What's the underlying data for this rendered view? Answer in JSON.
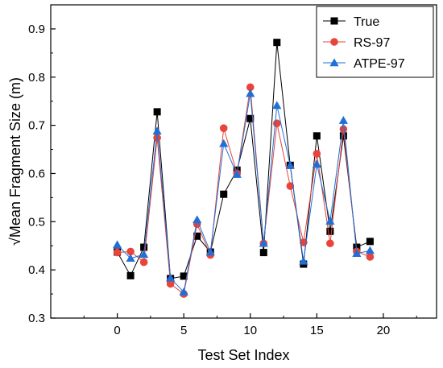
{
  "chart_data": {
    "type": "line",
    "title": "",
    "xlabel": "Test Set Index",
    "ylabel": "√Mean Fragment Size (m)",
    "xlim": [
      -5,
      24
    ],
    "ylim": [
      0.3,
      0.95
    ],
    "x_ticks": [
      0,
      5,
      10,
      15,
      20
    ],
    "x_tick_labels": [
      "0",
      "5",
      "10",
      "15",
      "20"
    ],
    "y_ticks": [
      0.3,
      0.4,
      0.5,
      0.6,
      0.7,
      0.8,
      0.9
    ],
    "y_tick_labels": [
      "0.3",
      "0.4",
      "0.5",
      "0.6",
      "0.7",
      "0.8",
      "0.9"
    ],
    "grid": false,
    "legend_position": "top-right",
    "x": [
      0,
      1,
      2,
      3,
      4,
      5,
      6,
      7,
      8,
      9,
      10,
      11,
      12,
      13,
      14,
      15,
      16,
      17,
      18,
      19
    ],
    "series": [
      {
        "name": "True",
        "color": "#000000",
        "marker": "square",
        "values": [
          0.437,
          0.388,
          0.447,
          0.728,
          0.382,
          0.387,
          0.47,
          0.437,
          0.557,
          0.607,
          0.714,
          0.436,
          0.872,
          0.617,
          0.412,
          0.678,
          0.48,
          0.678,
          0.447,
          0.459
        ]
      },
      {
        "name": "RS-97",
        "color": "#e8443a",
        "marker": "circle",
        "values": [
          0.436,
          0.438,
          0.416,
          0.674,
          0.371,
          0.35,
          0.495,
          0.431,
          0.694,
          0.6,
          0.779,
          0.455,
          0.704,
          0.574,
          0.457,
          0.641,
          0.455,
          0.692,
          0.438,
          0.427
        ]
      },
      {
        "name": "ATPE-97",
        "color": "#1f6fd6",
        "marker": "triangle",
        "values": [
          0.452,
          0.424,
          0.432,
          0.688,
          0.383,
          0.354,
          0.504,
          0.437,
          0.662,
          0.598,
          0.766,
          0.455,
          0.741,
          0.617,
          0.418,
          0.619,
          0.501,
          0.71,
          0.434,
          0.44
        ]
      }
    ]
  }
}
